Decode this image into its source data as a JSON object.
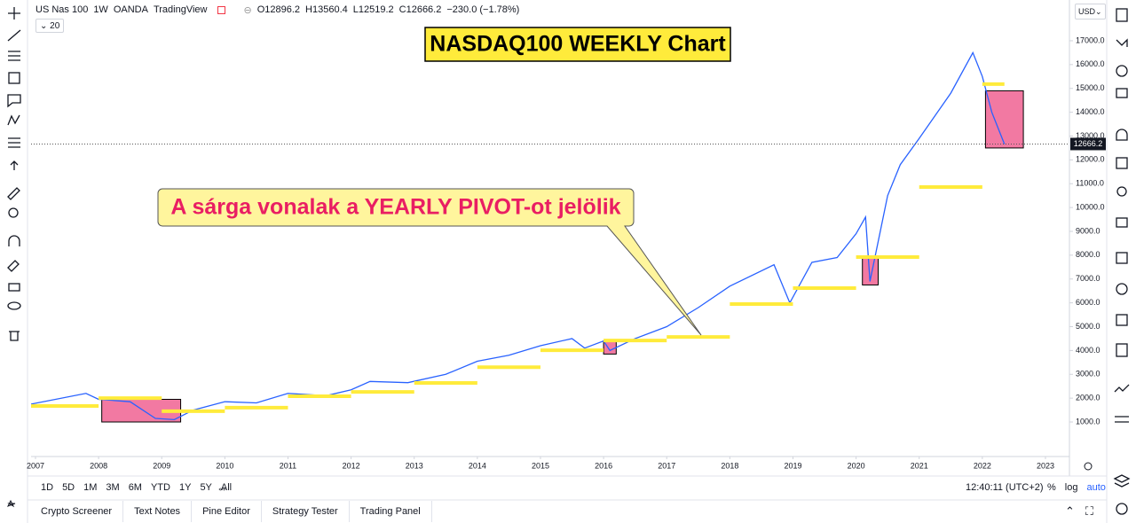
{
  "header": {
    "symbol": "US Nas 100",
    "interval": "1W",
    "source": "OANDA",
    "platform": "TradingView",
    "open": "O12896.2",
    "high": "H13560.4",
    "low": "L12519.2",
    "close": "C12666.2",
    "change": "−230.0 (−1.78%)",
    "indicator": "20",
    "currency": "USD"
  },
  "chart_data": {
    "type": "line",
    "title": "NASDAQ100 WEEKLY Chart",
    "annotation": "A sárga vonalak a YEARLY PIVOT-ot jelölik",
    "x": [
      2006.93,
      2007.8,
      2008.0,
      2008.5,
      2008.9,
      2009.2,
      2009.5,
      2010.0,
      2010.5,
      2011.0,
      2011.6,
      2012.0,
      2012.3,
      2012.9,
      2013.5,
      2014.0,
      2014.5,
      2015.0,
      2015.5,
      2015.7,
      2016.0,
      2016.1,
      2016.5,
      2017.0,
      2017.5,
      2018.0,
      2018.7,
      2018.95,
      2019.3,
      2019.7,
      2020.0,
      2020.15,
      2020.22,
      2020.5,
      2020.7,
      2021.0,
      2021.5,
      2021.85,
      2022.0,
      2022.15,
      2022.35
    ],
    "values": [
      1750,
      2200,
      1950,
      1850,
      1150,
      1100,
      1500,
      1850,
      1800,
      2200,
      2100,
      2350,
      2700,
      2650,
      3000,
      3550,
      3800,
      4200,
      4500,
      4100,
      4400,
      4000,
      4500,
      5000,
      5800,
      6700,
      7600,
      6000,
      7700,
      7900,
      8900,
      9600,
      6900,
      10500,
      11800,
      12900,
      14800,
      16500,
      15500,
      14000,
      12666.2
    ],
    "color": "#2962ff",
    "xlim": [
      2006.93,
      2023.38
    ],
    "ylim": [
      -450,
      18710
    ],
    "xticks": [
      2007,
      2008,
      2009,
      2010,
      2011,
      2012,
      2013,
      2014,
      2015,
      2016,
      2017,
      2018,
      2019,
      2020,
      2021,
      2022,
      2023
    ],
    "yticks": [
      {
        "value": 1000,
        "label": "1000.0"
      },
      {
        "value": 2000,
        "label": "2000.0"
      },
      {
        "value": 3000,
        "label": "3000.0"
      },
      {
        "value": 4000,
        "label": "4000.0"
      },
      {
        "value": 5000,
        "label": "5000.0"
      },
      {
        "value": 6000,
        "label": "6000.0"
      },
      {
        "value": 7000,
        "label": "7000.0"
      },
      {
        "value": 8000,
        "label": "8000.0"
      },
      {
        "value": 9000,
        "label": "9000.0"
      },
      {
        "value": 10000,
        "label": "10000.0"
      },
      {
        "value": 11000,
        "label": "11000.0"
      },
      {
        "value": 12000,
        "label": "12000.0"
      },
      {
        "value": 13000,
        "label": "13000.0"
      },
      {
        "value": 14000,
        "label": "14000.0"
      },
      {
        "value": 15000,
        "label": "15000.0"
      },
      {
        "value": 16000,
        "label": "16000.0"
      },
      {
        "value": 17000,
        "label": "17000.0"
      }
    ],
    "last_price": 12666.2,
    "pivot_color": "#ffeb3b",
    "pivots": [
      {
        "start": 2006.93,
        "end": 2008.0,
        "value": 1670
      },
      {
        "start": 2008.0,
        "end": 2009.0,
        "value": 2000
      },
      {
        "start": 2009.0,
        "end": 2010.0,
        "value": 1450
      },
      {
        "start": 2010.0,
        "end": 2011.0,
        "value": 1600
      },
      {
        "start": 2011.0,
        "end": 2012.0,
        "value": 2080
      },
      {
        "start": 2012.0,
        "end": 2013.0,
        "value": 2260
      },
      {
        "start": 2013.0,
        "end": 2014.0,
        "value": 2640
      },
      {
        "start": 2014.0,
        "end": 2015.0,
        "value": 3300
      },
      {
        "start": 2015.0,
        "end": 2016.0,
        "value": 4010
      },
      {
        "start": 2016.0,
        "end": 2017.0,
        "value": 4420
      },
      {
        "start": 2017.0,
        "end": 2018.0,
        "value": 4570
      },
      {
        "start": 2018.0,
        "end": 2019.0,
        "value": 5950
      },
      {
        "start": 2019.0,
        "end": 2020.0,
        "value": 6620
      },
      {
        "start": 2020.0,
        "end": 2021.0,
        "value": 7920
      },
      {
        "start": 2021.0,
        "end": 2022.0,
        "value": 10860
      },
      {
        "start": 2022.0,
        "end": 2022.35,
        "value": 15180
      }
    ],
    "box_color": "#f06292",
    "boxes": [
      {
        "start": 2008.05,
        "end": 2009.3,
        "low": 1000,
        "high": 1950
      },
      {
        "start": 2016.0,
        "end": 2016.2,
        "low": 3850,
        "high": 4400
      },
      {
        "start": 2020.1,
        "end": 2020.35,
        "low": 6750,
        "high": 7900
      },
      {
        "start": 2022.05,
        "end": 2022.65,
        "low": 12500,
        "high": 14900
      }
    ]
  },
  "timeframes": [
    "1D",
    "5D",
    "1M",
    "3M",
    "6M",
    "YTD",
    "1Y",
    "5Y",
    "All"
  ],
  "clock": "12:40:11 (UTC+2)",
  "scale_options": [
    "%",
    "log",
    "auto"
  ],
  "tabs": [
    "Crypto Screener",
    "Text Notes",
    "Pine Editor",
    "Strategy Tester",
    "Trading Panel"
  ]
}
